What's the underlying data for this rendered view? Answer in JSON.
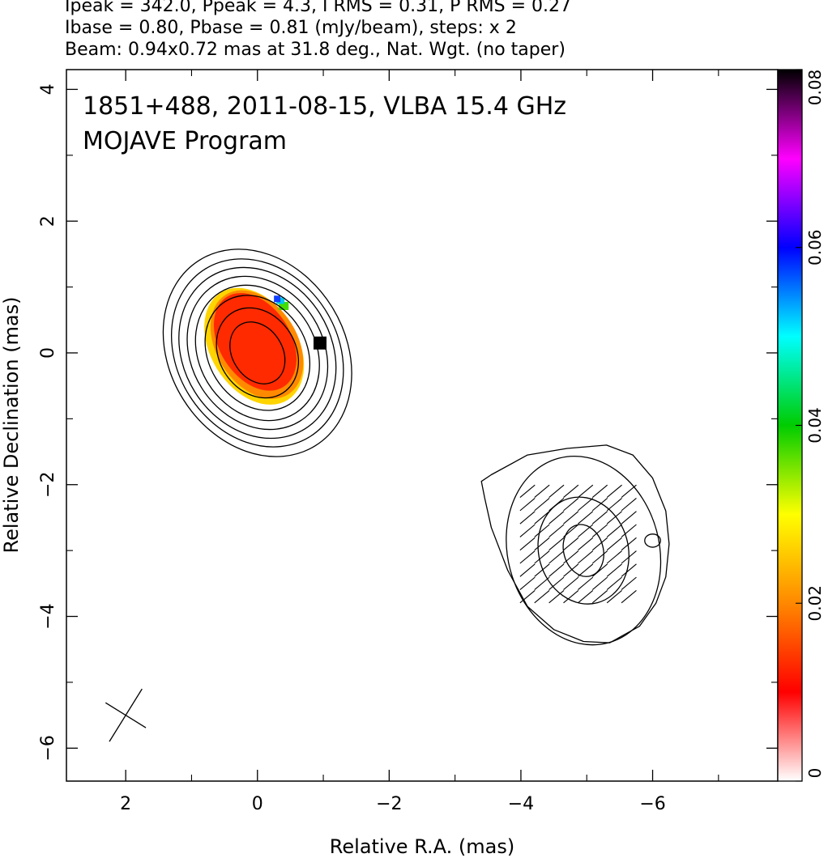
{
  "header": {
    "line1": "Ipeak = 342.0, Ppeak = 4.3, I RMS = 0.31, P RMS = 0.27",
    "line2": "Ibase = 0.80, Pbase = 0.81 (mJy/beam), steps: x 2",
    "line3": "Beam: 0.94x0.72 mas at 31.8 deg., Nat. Wgt. (no taper)"
  },
  "chart_data": {
    "type": "heatmap",
    "title": "1851+488, 2011-08-15, VLBA 15.4 GHz",
    "subtitle": "MOJAVE Program",
    "xlabel": "Relative R.A. (mas)",
    "ylabel": "Relative Declination (mas)",
    "xlim": [
      2.9,
      -7.9
    ],
    "ylim": [
      -6.5,
      4.3
    ],
    "x_ticks": [
      2,
      0,
      -2,
      -4,
      -6
    ],
    "x_tick_labels": [
      "2",
      "0",
      "−2",
      "−4",
      "−6"
    ],
    "y_ticks": [
      4,
      2,
      0,
      -2,
      -4,
      -6
    ],
    "y_tick_labels": [
      "4",
      "2",
      "0",
      "−2",
      "−4",
      "−6"
    ],
    "grid": false,
    "colorbar": {
      "range": [
        0,
        0.08
      ],
      "ticks": [
        0,
        0.02,
        0.04,
        0.06,
        0.08
      ],
      "tick_labels": [
        "0",
        "0.02",
        "0.04",
        "0.06",
        "0.08"
      ],
      "colors": [
        "#ffffff",
        "#ff0000",
        "#ff8800",
        "#ffff00",
        "#00cc00",
        "#00ffff",
        "#0000ff",
        "#ff00ff",
        "#000000"
      ]
    },
    "components": [
      {
        "name": "core",
        "center": [
          0.0,
          0.0
        ],
        "contours": [
          {
            "dx": 0.38,
            "dy": 0.5,
            "angle": -32
          },
          {
            "dx": 0.58,
            "dy": 0.72,
            "angle": -32
          },
          {
            "dx": 0.74,
            "dy": 0.92,
            "angle": -32
          },
          {
            "dx": 0.88,
            "dy": 1.08,
            "angle": -32
          },
          {
            "dx": 1.0,
            "dy": 1.22,
            "angle": -32
          },
          {
            "dx": 1.12,
            "dy": 1.36,
            "angle": -32
          },
          {
            "dx": 1.22,
            "dy": 1.5,
            "angle": -32
          },
          {
            "dx": 1.33,
            "dy": 1.66,
            "angle": -32
          }
        ],
        "polarization_patch": {
          "center": [
            0.05,
            0.1
          ],
          "dx": 0.66,
          "dy": 0.96,
          "angle": -32
        }
      },
      {
        "name": "jet",
        "center": [
          -4.95,
          -3.0
        ],
        "contours": [
          {
            "dx": 0.3,
            "dy": 0.4,
            "angle": -15
          },
          {
            "dx": 0.68,
            "dy": 0.82,
            "angle": -15
          },
          {
            "dx": 1.15,
            "dy": 1.45,
            "angle": -15
          }
        ],
        "outer_contour": [
          [
            -3.4,
            -1.95
          ],
          [
            -3.55,
            -1.85
          ],
          [
            -4.1,
            -1.55
          ],
          [
            -4.7,
            -1.45
          ],
          [
            -5.3,
            -1.4
          ],
          [
            -5.7,
            -1.55
          ],
          [
            -6.0,
            -1.9
          ],
          [
            -6.2,
            -2.4
          ],
          [
            -6.25,
            -2.9
          ],
          [
            -6.2,
            -3.4
          ],
          [
            -6.05,
            -3.8
          ],
          [
            -5.8,
            -4.15
          ],
          [
            -5.35,
            -4.4
          ],
          [
            -4.95,
            -4.38
          ],
          [
            -4.5,
            -4.2
          ],
          [
            -4.1,
            -3.85
          ],
          [
            -3.8,
            -3.3
          ],
          [
            -3.55,
            -2.65
          ],
          [
            -3.45,
            -2.2
          ]
        ],
        "side_contour": {
          "center": [
            -6.0,
            -2.85
          ],
          "dx": 0.12,
          "dy": 0.1
        },
        "evpa_deg": 40
      }
    ],
    "beam": {
      "center": [
        2.0,
        -5.5
      ],
      "major": 0.94,
      "minor": 0.72,
      "angle": 31.8
    }
  }
}
